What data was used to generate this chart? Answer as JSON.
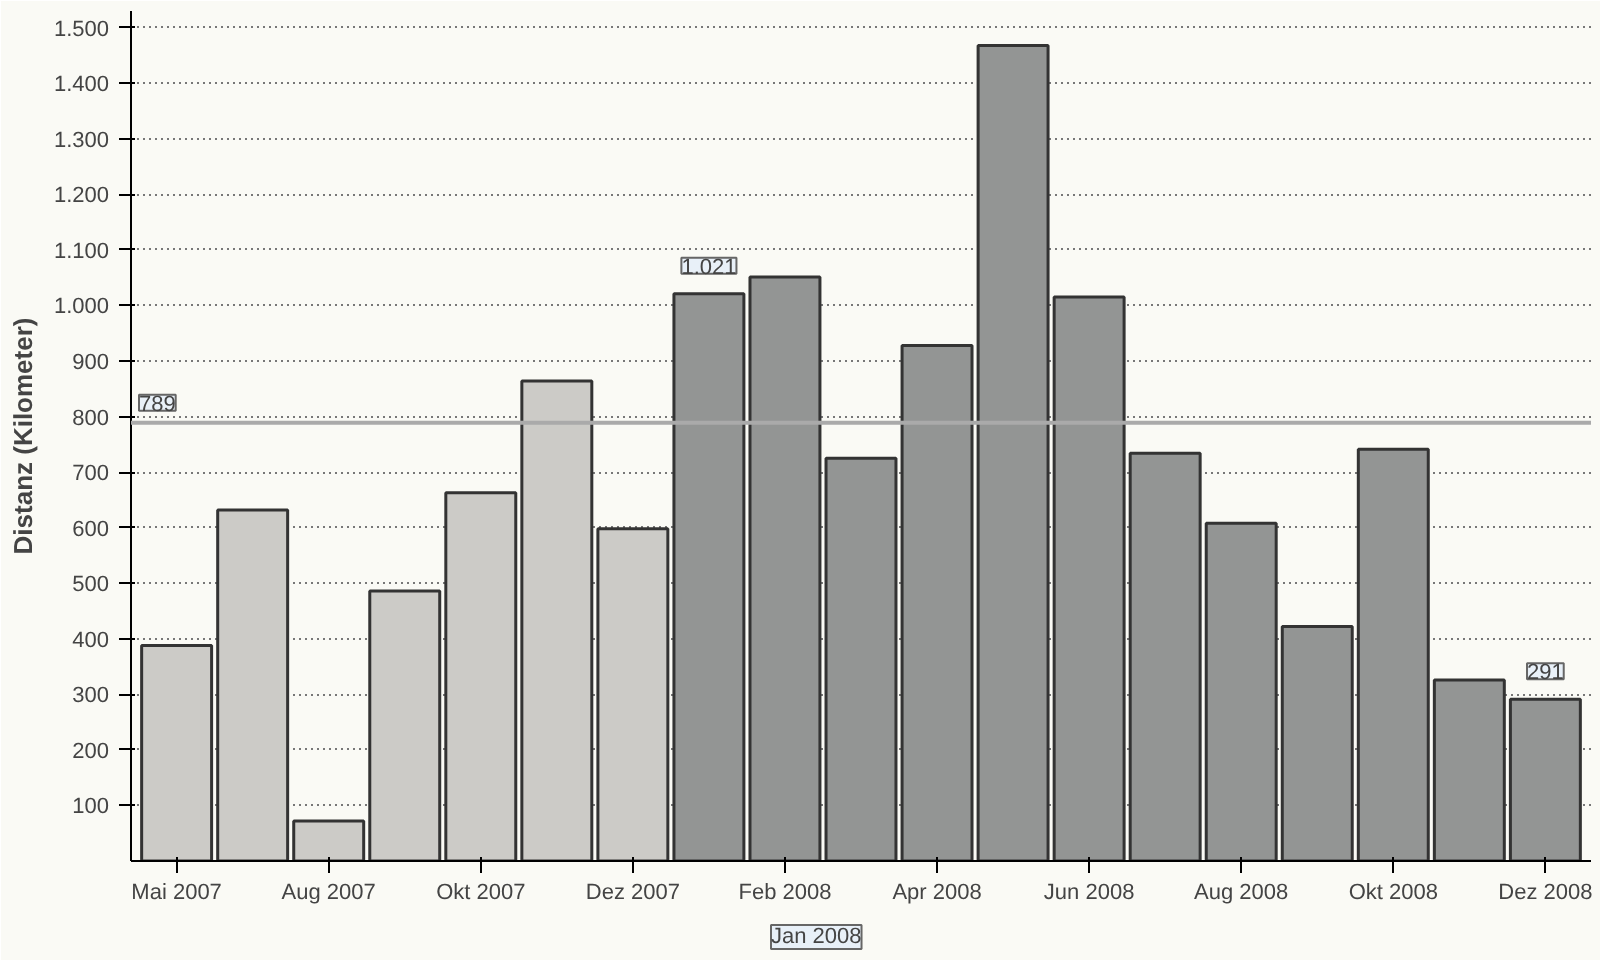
{
  "chart_data": {
    "type": "bar",
    "ylabel": "Distanz (Kilometer)",
    "categories": [
      "Mai 2007",
      null,
      "Aug 2007",
      null,
      "Okt 2007",
      null,
      "Dez 2007",
      null,
      "Feb 2008",
      null,
      "Apr 2008",
      null,
      "Jun 2008",
      null,
      "Aug 2008",
      null,
      "Okt 2008",
      null,
      "Dez 2008"
    ],
    "values": [
      388,
      632,
      72,
      486,
      663,
      864,
      598,
      1021,
      1051,
      725,
      928,
      1468,
      1015,
      734,
      608,
      422,
      741,
      326,
      291
    ],
    "colors": [
      "#cccbc7",
      "#cccbc7",
      "#cccbc7",
      "#cccbc7",
      "#cccbc7",
      "#cccbc7",
      "#cccbc7",
      "#939594",
      "#939594",
      "#939594",
      "#939594",
      "#939594",
      "#939594",
      "#939594",
      "#939594",
      "#939594",
      "#939594",
      "#939594",
      "#939594"
    ],
    "value_labels": [
      null,
      null,
      null,
      null,
      null,
      null,
      null,
      "1.021",
      null,
      null,
      null,
      null,
      null,
      null,
      null,
      null,
      null,
      null,
      "291"
    ],
    "ylim": [
      0,
      1530
    ],
    "yticks": [
      100,
      200,
      300,
      400,
      500,
      600,
      700,
      800,
      900,
      {
        "value": 1000,
        "label": "1.000"
      },
      {
        "value": 1100,
        "label": "1.100"
      },
      {
        "value": 1200,
        "label": "1.200"
      },
      {
        "value": 1300,
        "label": "1.300"
      },
      {
        "value": 1400,
        "label": "1.400"
      },
      {
        "value": 1500,
        "label": "1.500"
      }
    ],
    "ref_lines": [
      {
        "axis": "y",
        "value": 789,
        "label": "789",
        "color": "#aaaaaa"
      }
    ],
    "annotations": [
      "Jan 2008"
    ],
    "grid": "y"
  }
}
